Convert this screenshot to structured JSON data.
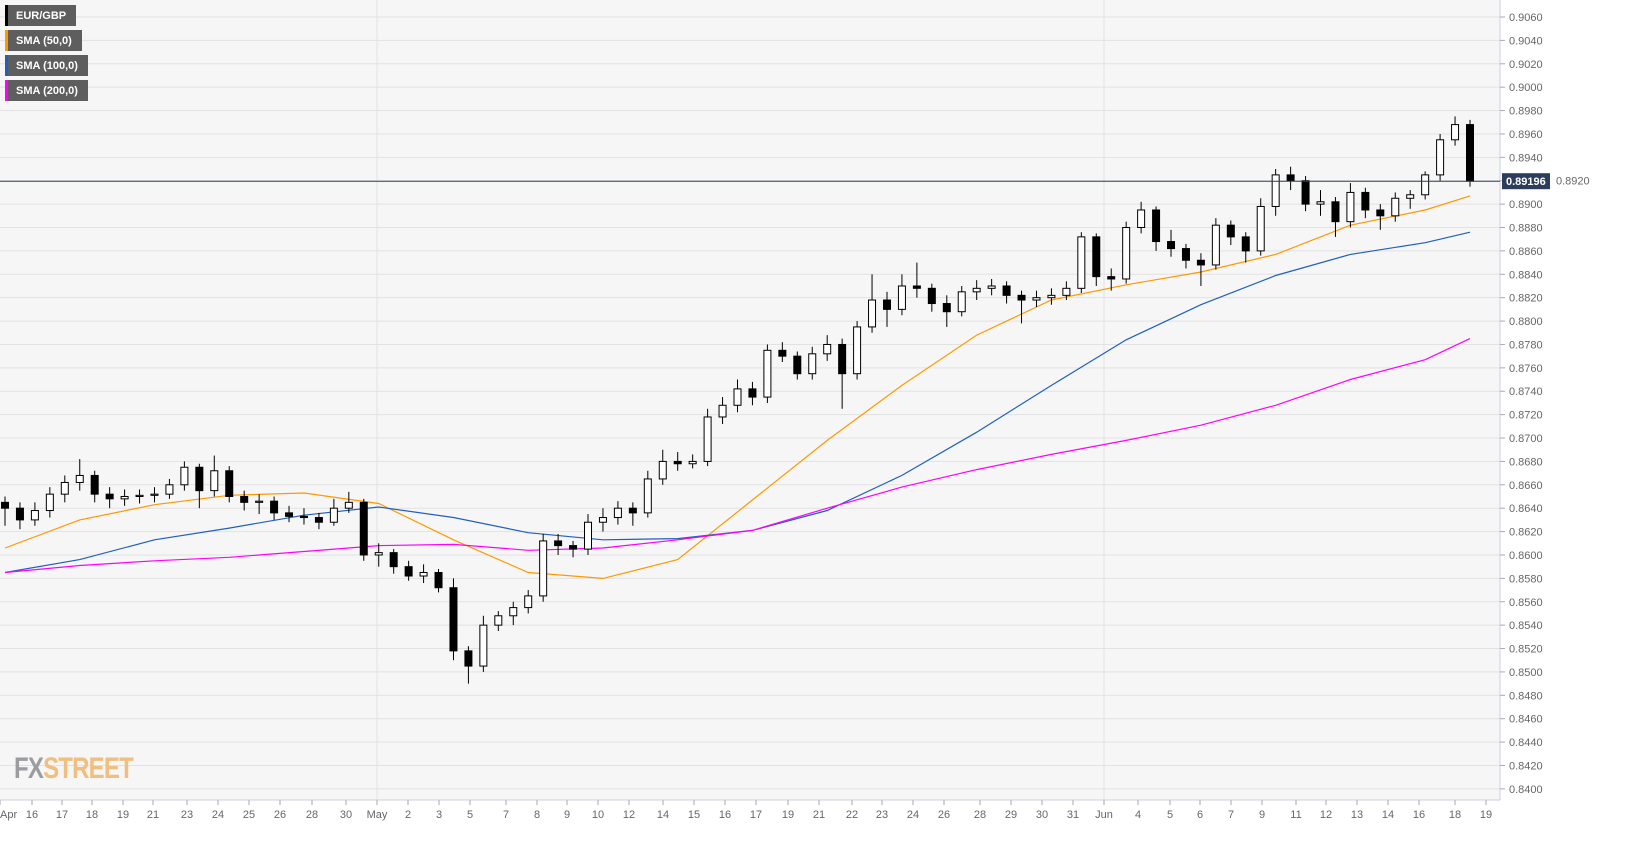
{
  "legend": [
    {
      "label": "EUR/GBP",
      "color": "#000000"
    },
    {
      "label": "SMA (50,0)",
      "color": "#ff9900"
    },
    {
      "label": "SMA (100,0)",
      "color": "#1f5fbf"
    },
    {
      "label": "SMA (200,0)",
      "color": "#ff00ff"
    }
  ],
  "logo": {
    "part1": "FX",
    "part2": "STREET"
  },
  "chart_data": {
    "type": "candlestick",
    "symbol": "EUR/GBP",
    "ylim": [
      0.839,
      0.9068
    ],
    "y_ticks": [
      "0.8400",
      "0.8420",
      "0.8440",
      "0.8460",
      "0.8480",
      "0.8500",
      "0.8520",
      "0.8540",
      "0.8560",
      "0.8580",
      "0.8600",
      "0.8620",
      "0.8640",
      "0.8660",
      "0.8680",
      "0.8700",
      "0.8720",
      "0.8740",
      "0.8760",
      "0.8780",
      "0.8800",
      "0.8820",
      "0.8840",
      "0.8860",
      "0.8880",
      "0.8900",
      "0.8920",
      "0.8940",
      "0.8960",
      "0.8980",
      "0.9000",
      "0.9020",
      "0.9040",
      "0.9060"
    ],
    "x_ticks": [
      "Apr",
      "16",
      "17",
      "18",
      "19",
      "21",
      "23",
      "24",
      "25",
      "26",
      "28",
      "30",
      "May",
      "2",
      "3",
      "5",
      "7",
      "8",
      "9",
      "10",
      "12",
      "14",
      "15",
      "16",
      "17",
      "19",
      "21",
      "22",
      "23",
      "24",
      "26",
      "28",
      "29",
      "30",
      "31",
      "Jun",
      "4",
      "5",
      "6",
      "7",
      "9",
      "11",
      "12",
      "13",
      "14",
      "16",
      "18",
      "19"
    ],
    "current_price": "0.89196",
    "grid": true,
    "candles_ohlc": [
      [
        0.8645,
        0.865,
        0.8625,
        0.864
      ],
      [
        0.864,
        0.8645,
        0.8622,
        0.863
      ],
      [
        0.863,
        0.8645,
        0.8625,
        0.8638
      ],
      [
        0.8638,
        0.8658,
        0.8632,
        0.8652
      ],
      [
        0.8652,
        0.8668,
        0.8645,
        0.8662
      ],
      [
        0.8662,
        0.8682,
        0.8655,
        0.8668
      ],
      [
        0.8668,
        0.8672,
        0.8645,
        0.8652
      ],
      [
        0.8652,
        0.8658,
        0.864,
        0.8648
      ],
      [
        0.8648,
        0.8656,
        0.8642,
        0.865
      ],
      [
        0.865,
        0.8656,
        0.8644,
        0.8651
      ],
      [
        0.8651,
        0.8658,
        0.8645,
        0.8652
      ],
      [
        0.8652,
        0.8665,
        0.8648,
        0.866
      ],
      [
        0.866,
        0.868,
        0.8655,
        0.8675
      ],
      [
        0.8675,
        0.8678,
        0.864,
        0.8655
      ],
      [
        0.8655,
        0.8685,
        0.865,
        0.8672
      ],
      [
        0.8672,
        0.8676,
        0.8645,
        0.865
      ],
      [
        0.865,
        0.8655,
        0.8638,
        0.8645
      ],
      [
        0.8645,
        0.8652,
        0.8635,
        0.8646
      ],
      [
        0.8646,
        0.865,
        0.863,
        0.8636
      ],
      [
        0.8636,
        0.8642,
        0.8628,
        0.8633
      ],
      [
        0.8633,
        0.864,
        0.8626,
        0.8632
      ],
      [
        0.8632,
        0.8636,
        0.8622,
        0.8628
      ],
      [
        0.8628,
        0.8648,
        0.8625,
        0.864
      ],
      [
        0.864,
        0.8654,
        0.8636,
        0.8645
      ],
      [
        0.8645,
        0.8648,
        0.8595,
        0.86
      ],
      [
        0.86,
        0.861,
        0.859,
        0.8602
      ],
      [
        0.8602,
        0.8605,
        0.8584,
        0.859
      ],
      [
        0.859,
        0.8595,
        0.8578,
        0.8582
      ],
      [
        0.8582,
        0.8592,
        0.8576,
        0.8585
      ],
      [
        0.8585,
        0.8588,
        0.8568,
        0.8572
      ],
      [
        0.8572,
        0.858,
        0.851,
        0.8518
      ],
      [
        0.8518,
        0.8522,
        0.849,
        0.8505
      ],
      [
        0.8505,
        0.8548,
        0.85,
        0.854
      ],
      [
        0.854,
        0.8552,
        0.8535,
        0.8548
      ],
      [
        0.8548,
        0.856,
        0.854,
        0.8555
      ],
      [
        0.8555,
        0.857,
        0.855,
        0.8565
      ],
      [
        0.8565,
        0.8618,
        0.856,
        0.8612
      ],
      [
        0.8612,
        0.8618,
        0.86,
        0.8608
      ],
      [
        0.8608,
        0.8612,
        0.8598,
        0.8605
      ],
      [
        0.8605,
        0.8635,
        0.86,
        0.8628
      ],
      [
        0.8628,
        0.864,
        0.862,
        0.8632
      ],
      [
        0.8632,
        0.8646,
        0.8626,
        0.864
      ],
      [
        0.864,
        0.8645,
        0.8625,
        0.8636
      ],
      [
        0.8636,
        0.8672,
        0.8632,
        0.8665
      ],
      [
        0.8665,
        0.869,
        0.866,
        0.868
      ],
      [
        0.868,
        0.8688,
        0.8672,
        0.8678
      ],
      [
        0.8678,
        0.8686,
        0.8674,
        0.868
      ],
      [
        0.868,
        0.8725,
        0.8676,
        0.8718
      ],
      [
        0.8718,
        0.8735,
        0.8712,
        0.8728
      ],
      [
        0.8728,
        0.875,
        0.8722,
        0.8742
      ],
      [
        0.8742,
        0.8748,
        0.8728,
        0.8735
      ],
      [
        0.8735,
        0.878,
        0.873,
        0.8775
      ],
      [
        0.8775,
        0.8782,
        0.8765,
        0.877
      ],
      [
        0.877,
        0.8774,
        0.875,
        0.8755
      ],
      [
        0.8755,
        0.8778,
        0.875,
        0.8772
      ],
      [
        0.8772,
        0.8788,
        0.8766,
        0.878
      ],
      [
        0.878,
        0.8785,
        0.8725,
        0.8755
      ],
      [
        0.8755,
        0.88,
        0.875,
        0.8795
      ],
      [
        0.8795,
        0.884,
        0.879,
        0.8818
      ],
      [
        0.8818,
        0.8825,
        0.8795,
        0.881
      ],
      [
        0.881,
        0.884,
        0.8805,
        0.883
      ],
      [
        0.883,
        0.885,
        0.882,
        0.8828
      ],
      [
        0.8828,
        0.8832,
        0.8808,
        0.8815
      ],
      [
        0.8815,
        0.8822,
        0.8795,
        0.8808
      ],
      [
        0.8808,
        0.883,
        0.8804,
        0.8825
      ],
      [
        0.8825,
        0.8835,
        0.8818,
        0.8828
      ],
      [
        0.8828,
        0.8836,
        0.8822,
        0.883
      ],
      [
        0.883,
        0.8834,
        0.8815,
        0.8822
      ],
      [
        0.8822,
        0.8826,
        0.8798,
        0.8818
      ],
      [
        0.8818,
        0.8826,
        0.8812,
        0.882
      ],
      [
        0.882,
        0.8828,
        0.8814,
        0.8822
      ],
      [
        0.8822,
        0.8834,
        0.8818,
        0.8828
      ],
      [
        0.8828,
        0.8876,
        0.8824,
        0.8872
      ],
      [
        0.8872,
        0.8875,
        0.883,
        0.8838
      ],
      [
        0.8838,
        0.8845,
        0.8826,
        0.8836
      ],
      [
        0.8836,
        0.8885,
        0.8832,
        0.888
      ],
      [
        0.888,
        0.8902,
        0.8875,
        0.8895
      ],
      [
        0.8895,
        0.8898,
        0.886,
        0.8868
      ],
      [
        0.8868,
        0.8878,
        0.8855,
        0.8862
      ],
      [
        0.8862,
        0.8866,
        0.8845,
        0.8852
      ],
      [
        0.8852,
        0.8858,
        0.883,
        0.8848
      ],
      [
        0.8848,
        0.8888,
        0.8844,
        0.8882
      ],
      [
        0.8882,
        0.8886,
        0.8865,
        0.8872
      ],
      [
        0.8872,
        0.8876,
        0.885,
        0.886
      ],
      [
        0.886,
        0.8905,
        0.8856,
        0.8898
      ],
      [
        0.8898,
        0.893,
        0.889,
        0.8925
      ],
      [
        0.8925,
        0.8932,
        0.8912,
        0.892
      ],
      [
        0.892,
        0.8924,
        0.8894,
        0.89
      ],
      [
        0.89,
        0.8912,
        0.889,
        0.8902
      ],
      [
        0.8902,
        0.8906,
        0.8872,
        0.8885
      ],
      [
        0.8885,
        0.8918,
        0.888,
        0.891
      ],
      [
        0.891,
        0.8914,
        0.8888,
        0.8895
      ],
      [
        0.8895,
        0.89,
        0.8878,
        0.889
      ],
      [
        0.889,
        0.891,
        0.8885,
        0.8905
      ],
      [
        0.8905,
        0.8912,
        0.8896,
        0.8908
      ],
      [
        0.8908,
        0.8928,
        0.8904,
        0.8925
      ],
      [
        0.8925,
        0.896,
        0.892,
        0.8955
      ],
      [
        0.8955,
        0.8975,
        0.895,
        0.8968
      ],
      [
        0.8968,
        0.8972,
        0.8915,
        0.89196
      ]
    ],
    "series": [
      {
        "name": "SMA (50,0)",
        "color": "#ff9900",
        "values": [
          0.8606,
          0.863,
          0.8643,
          0.8651,
          0.8653,
          0.8644,
          0.8613,
          0.8585,
          0.858,
          0.8596,
          0.8647,
          0.8698,
          0.8745,
          0.8788,
          0.8818,
          0.8831,
          0.8842,
          0.8857,
          0.8882,
          0.8895,
          0.8907
        ]
      },
      {
        "name": "SMA (100,0)",
        "color": "#1f5fbf",
        "values": [
          0.8585,
          0.8596,
          0.8613,
          0.8623,
          0.8634,
          0.8641,
          0.8632,
          0.8619,
          0.8613,
          0.8614,
          0.8621,
          0.8638,
          0.8668,
          0.8705,
          0.8745,
          0.8784,
          0.8814,
          0.8839,
          0.8857,
          0.8867,
          0.8876
        ]
      },
      {
        "name": "SMA (200,0)",
        "color": "#ff00ff",
        "values": [
          0.8585,
          0.8591,
          0.8595,
          0.8598,
          0.8603,
          0.8608,
          0.8609,
          0.8604,
          0.8606,
          0.8613,
          0.8621,
          0.864,
          0.8658,
          0.8673,
          0.8686,
          0.8698,
          0.8711,
          0.8728,
          0.875,
          0.8767,
          0.8785
        ]
      }
    ]
  }
}
